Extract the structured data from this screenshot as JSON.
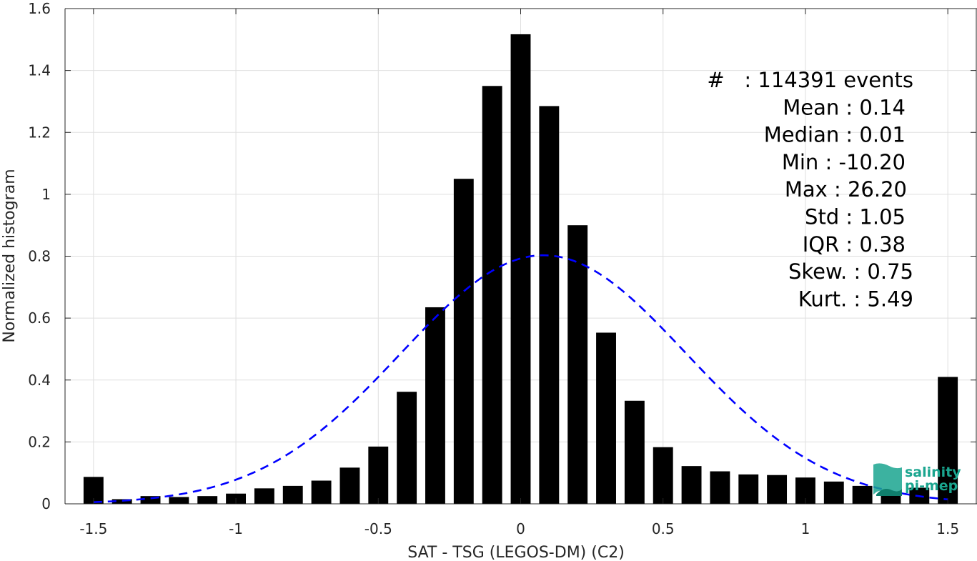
{
  "chart_data": {
    "type": "bar",
    "xlabel": "SAT - TSG (LEGOS-DM) (C2)",
    "ylabel": "Normalized histogram",
    "xlim": [
      -1.6,
      1.6
    ],
    "ylim": [
      0,
      1.6
    ],
    "xticks": [
      -1.5,
      -1,
      -0.5,
      0,
      0.5,
      1,
      1.5
    ],
    "xtick_labels": [
      "-1.5",
      "-1",
      "-0.5",
      "0",
      "0.5",
      "1",
      "1.5"
    ],
    "yticks": [
      0,
      0.2,
      0.4,
      0.6,
      0.8,
      1,
      1.2,
      1.4,
      1.6
    ],
    "ytick_labels": [
      "0",
      "0.2",
      "0.4",
      "0.6",
      "0.8",
      "1",
      "1.2",
      "1.4",
      "1.6"
    ],
    "grid": true,
    "bar_width": 0.07,
    "bars": {
      "x": [
        -1.5,
        -1.4,
        -1.3,
        -1.2,
        -1.1,
        -1.0,
        -0.9,
        -0.8,
        -0.7,
        -0.6,
        -0.5,
        -0.4,
        -0.3,
        -0.2,
        -0.1,
        0.0,
        0.1,
        0.2,
        0.3,
        0.4,
        0.5,
        0.6,
        0.7,
        0.8,
        0.9,
        1.0,
        1.1,
        1.2,
        1.3,
        1.4,
        1.5
      ],
      "values": [
        0.087,
        0.015,
        0.025,
        0.022,
        0.025,
        0.033,
        0.05,
        0.058,
        0.075,
        0.117,
        0.185,
        0.362,
        0.635,
        1.05,
        1.35,
        1.517,
        1.285,
        0.9,
        0.553,
        0.333,
        0.183,
        0.122,
        0.105,
        0.095,
        0.093,
        0.085,
        0.072,
        0.058,
        0.04,
        0.052,
        0.41
      ],
      "color": "#000000"
    },
    "fit_curve": {
      "style": "dashed",
      "color": "#0000ff",
      "mean": 0.08,
      "std": 0.5,
      "peak": 0.803,
      "x_range": [
        -1.5,
        1.5
      ]
    },
    "stats": [
      "#   : 114391 events",
      "Mean : 0.14",
      "Median : 0.01",
      "Min : -10.20",
      "Max : 26.20",
      "Std : 1.05",
      "IQR : 0.38",
      "Skew. : 0.75",
      "Kurt. : 5.49"
    ]
  },
  "logo": {
    "line1": "salinity",
    "line2": "pi-mep",
    "color": "#1aa58f"
  }
}
